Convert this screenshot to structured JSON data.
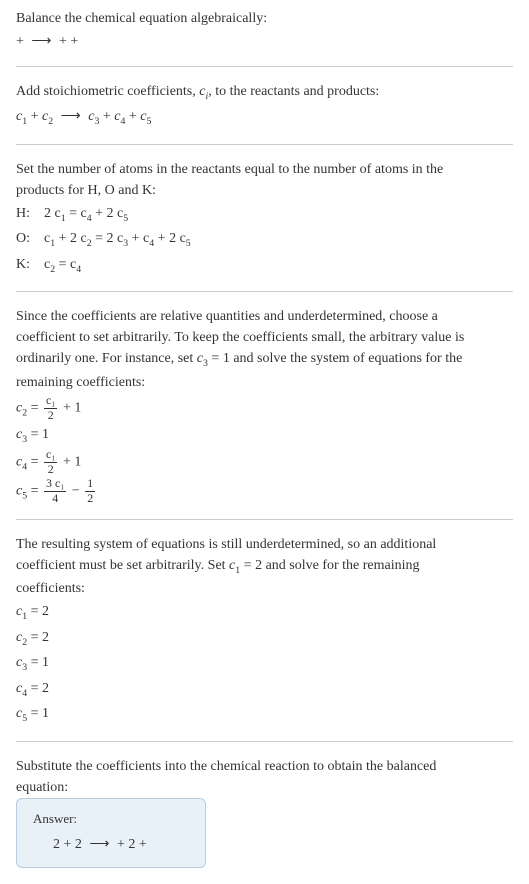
{
  "section1": {
    "line1": "Balance the chemical equation algebraically:",
    "line2_left": " + ",
    "line2_arrow": "⟶",
    "line2_right": " +  + "
  },
  "section2": {
    "line1_a": "Add stoichiometric coefficients, ",
    "line1_ci": "c",
    "line1_ci_sub": "i",
    "line1_b": ", to the reactants and products:",
    "eq_c1": "c",
    "eq_1": "1",
    "eq_plus1": "  + ",
    "eq_c2": "c",
    "eq_2": "2",
    "eq_sp1": "  ",
    "eq_arrow": "⟶",
    "eq_sp2": " ",
    "eq_c3": "c",
    "eq_3": "3",
    "eq_plus2": "  + ",
    "eq_c4": "c",
    "eq_4": "4",
    "eq_plus3": "  + ",
    "eq_c5": "c",
    "eq_5": "5"
  },
  "section3": {
    "intro1": "Set the number of atoms in the reactants equal to the number of atoms in the",
    "intro2": "products for H, O and K:",
    "rows": [
      {
        "label": "H: ",
        "c_a": "2 c",
        "s_a": "1",
        "mid": " = c",
        "s_b": "4",
        "mid2": " + 2 c",
        "s_c": "5"
      },
      {
        "label": "O: ",
        "c_a": "c",
        "s_a": "1",
        "mid": " + 2 c",
        "s_b": "2",
        "mid2": " = 2 c",
        "s_c": "3",
        "mid3": " + c",
        "s_d": "4",
        "mid4": " + 2 c",
        "s_e": "5"
      },
      {
        "label": "K: ",
        "c_a": "c",
        "s_a": "2",
        "mid": " = c",
        "s_b": "4"
      }
    ]
  },
  "section4": {
    "p1": "Since the coefficients are relative quantities and underdetermined, choose a",
    "p2": "coefficient to set arbitrarily. To keep the coefficients small, the arbitrary value is",
    "p3a": "ordinarily one. For instance, set ",
    "p3_c": "c",
    "p3_3": "3",
    "p3b": " = 1 and solve the system of equations for the",
    "p4": "remaining coefficients:",
    "eq1_l": "c",
    "eq1_ls": "2",
    "eq1_eq": " = ",
    "eq1_num": "c₁",
    "eq1_den": "2",
    "eq1_r": " + 1",
    "eq2_l": "c",
    "eq2_ls": "3",
    "eq2_r": " = 1",
    "eq3_l": "c",
    "eq3_ls": "4",
    "eq3_eq": " = ",
    "eq3_num": "c₁",
    "eq3_den": "2",
    "eq3_r": " + 1",
    "eq4_l": "c",
    "eq4_ls": "5",
    "eq4_eq": " = ",
    "eq4_num": "3 c₁",
    "eq4_den": "4",
    "eq4_m": " − ",
    "eq4_num2": "1",
    "eq4_den2": "2"
  },
  "section5": {
    "p1": "The resulting system of equations is still underdetermined, so an additional",
    "p2a": "coefficient must be set arbitrarily. Set ",
    "p2_c": "c",
    "p2_1": "1",
    "p2b": " = 2 and solve for the remaining",
    "p3": "coefficients:",
    "rows": [
      {
        "c": "c",
        "s": "1",
        "v": " = 2"
      },
      {
        "c": "c",
        "s": "2",
        "v": " = 2"
      },
      {
        "c": "c",
        "s": "3",
        "v": " = 1"
      },
      {
        "c": "c",
        "s": "4",
        "v": " = 2"
      },
      {
        "c": "c",
        "s": "5",
        "v": " = 1"
      }
    ]
  },
  "section6": {
    "p1": "Substitute the coefficients into the chemical reaction to obtain the balanced",
    "p2": "equation:",
    "answer_label": "Answer:",
    "answer_left": "2  + 2 ",
    "answer_arrow": "⟶",
    "answer_right": "  + 2  + "
  },
  "colors": {
    "text": "#333333",
    "hr": "#cccccc",
    "box_bg": "#e8f0f8",
    "box_border": "#b8cde0"
  }
}
